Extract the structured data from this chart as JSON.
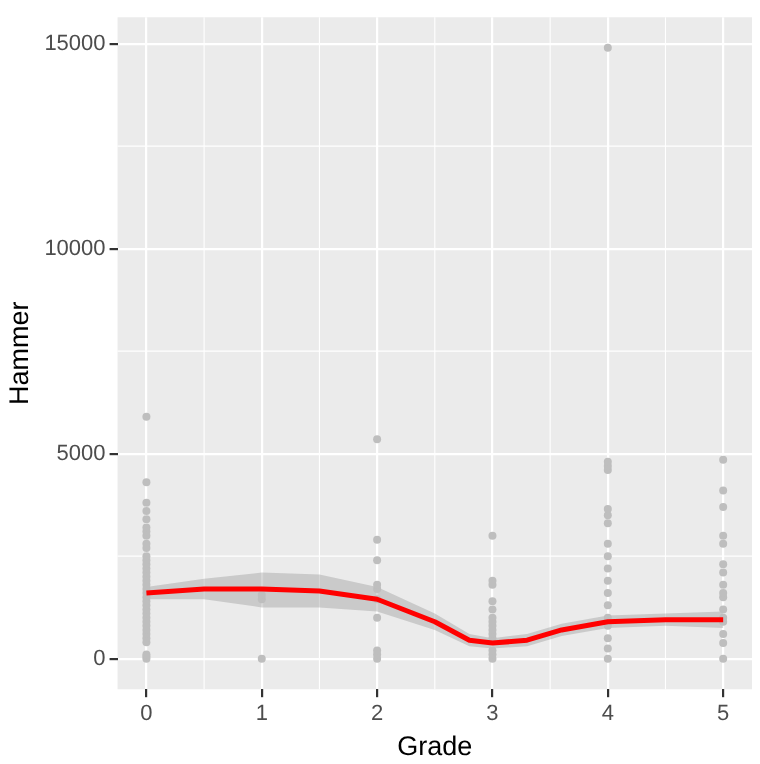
{
  "chart_data": {
    "type": "scatter",
    "xlabel": "Grade",
    "ylabel": "Hammer",
    "xlim": [
      -0.25,
      5.25
    ],
    "xticks": [
      0,
      1,
      2,
      3,
      4,
      5
    ],
    "ylim": [
      -745,
      15645
    ],
    "yticks": [
      0,
      5000,
      10000,
      15000
    ],
    "grid": true,
    "legend": false,
    "marker": "circle",
    "series": [
      {
        "color": "#bebebe",
        "x": [
          0,
          0,
          0,
          0,
          0,
          0,
          0,
          0,
          0,
          0,
          0,
          0,
          0,
          0,
          0,
          0,
          0,
          0,
          0,
          0,
          0,
          0,
          0,
          0,
          0,
          0,
          0,
          0,
          0,
          0,
          0,
          0,
          0,
          0,
          0,
          1,
          1,
          1,
          2,
          2,
          2,
          2,
          2,
          2,
          2,
          2,
          2,
          2,
          3,
          3,
          3,
          3,
          3,
          3,
          3,
          3,
          3,
          3,
          3,
          3,
          3,
          3,
          4,
          4,
          4,
          4,
          4,
          4,
          4,
          4,
          4,
          4,
          4,
          4,
          4,
          4,
          4,
          4,
          4,
          4,
          5,
          5,
          5,
          5,
          5,
          5,
          5,
          5,
          5,
          5,
          5,
          5,
          5,
          5,
          5,
          5
        ],
        "values": [
          0,
          50,
          100,
          400,
          500,
          600,
          700,
          800,
          900,
          1000,
          1100,
          1200,
          1300,
          1400,
          1500,
          1600,
          1700,
          1800,
          1900,
          2000,
          2100,
          2200,
          2300,
          2400,
          2500,
          2700,
          2800,
          3000,
          3100,
          3200,
          3400,
          3600,
          3800,
          4300,
          5900,
          0,
          1450,
          1550,
          0,
          100,
          200,
          1000,
          1450,
          1700,
          1800,
          2400,
          2900,
          5350,
          0,
          100,
          200,
          500,
          600,
          700,
          800,
          900,
          1000,
          1200,
          1400,
          1800,
          1900,
          3000,
          0,
          250,
          500,
          800,
          1000,
          1300,
          1600,
          1900,
          2200,
          2500,
          2800,
          3300,
          3500,
          3650,
          4600,
          4700,
          4800,
          14900,
          0,
          380,
          600,
          900,
          1200,
          1500,
          1800,
          2100,
          2300,
          2800,
          3000,
          3700,
          4100,
          4850,
          1000,
          1600
        ]
      },
      {
        "type": "line",
        "color": "#ff0000",
        "marker": "none",
        "x": [
          0,
          0.5,
          1,
          1.5,
          2,
          2.5,
          2.8,
          3,
          3.3,
          3.6,
          4,
          4.5,
          5
        ],
        "values": [
          1600,
          1700,
          1700,
          1650,
          1450,
          900,
          450,
          380,
          450,
          700,
          900,
          950,
          950
        ],
        "lower": [
          1450,
          1450,
          1250,
          1250,
          1150,
          700,
          300,
          250,
          300,
          550,
          750,
          800,
          750
        ],
        "upper": [
          1750,
          1950,
          2100,
          2050,
          1750,
          1100,
          600,
          500,
          600,
          850,
          1050,
          1100,
          1150
        ]
      }
    ]
  }
}
